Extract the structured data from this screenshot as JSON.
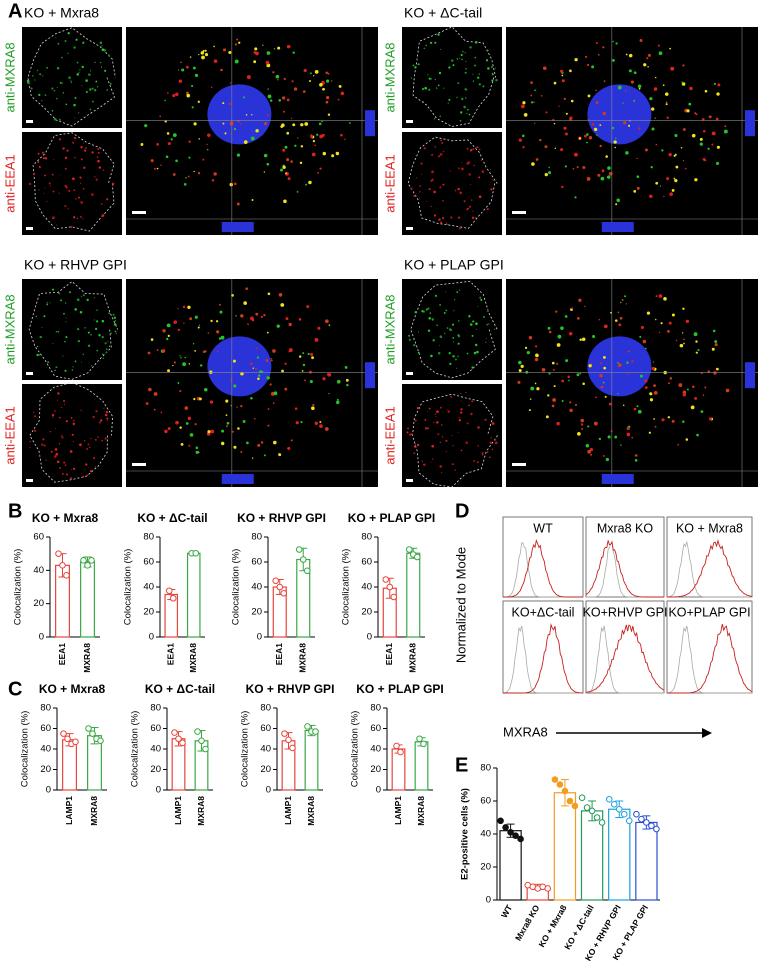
{
  "panel_labels": [
    "A",
    "B",
    "C",
    "D",
    "E"
  ],
  "microscopy": [
    {
      "title": "KO + Mxra8",
      "labels": [
        "anti-MXRA8",
        "anti-EEA1"
      ]
    },
    {
      "title": "KO + ΔC-tail",
      "labels": [
        "anti-MXRA8",
        "anti-EEA1"
      ]
    },
    {
      "title": "KO + RHVP GPI",
      "labels": [
        "anti-MXRA8",
        "anti-EEA1"
      ]
    },
    {
      "title": "KO + PLAP GPI",
      "labels": [
        "anti-MXRA8",
        "anti-EEA1"
      ]
    }
  ],
  "flow": {
    "ylabel": "Normalized to Mode",
    "xlabel": "MXRA8",
    "panels": [
      "WT",
      "Mxra8 KO",
      "KO + Mxra8",
      "KO+ΔC-tail",
      "KO+RHVP GPI",
      "KO+PLAP GPI"
    ]
  },
  "chart_data": [
    {
      "type": "bar",
      "title": "KO + Mxra8",
      "ylabel": "Colocalization (%)",
      "categories": [
        "EEA1",
        "MXRA8"
      ],
      "values": [
        43,
        45
      ],
      "errors": [
        7,
        3
      ],
      "points": [
        [
          50,
          43,
          37
        ],
        [
          46,
          43,
          46
        ]
      ],
      "colors": [
        "#e8453c",
        "#3aa845"
      ],
      "ylim": [
        0,
        60
      ],
      "yticks": [
        0,
        20,
        40,
        60
      ]
    },
    {
      "type": "bar",
      "title": "KO + ΔC-tail",
      "ylabel": "Colocalization (%)",
      "categories": [
        "EEA1",
        "MXRA8"
      ],
      "values": [
        34,
        67
      ],
      "errors": [
        4,
        0.5
      ],
      "points": [
        [
          37,
          31
        ],
        [
          67,
          67
        ]
      ],
      "colors": [
        "#e8453c",
        "#3aa845"
      ],
      "ylim": [
        0,
        80
      ],
      "yticks": [
        0,
        20,
        40,
        60,
        80
      ]
    },
    {
      "type": "bar",
      "title": "KO + RHVP GPI",
      "ylabel": "Colocalization (%)",
      "categories": [
        "EEA1",
        "MXRA8"
      ],
      "values": [
        40,
        62
      ],
      "errors": [
        6,
        9
      ],
      "points": [
        [
          45,
          40,
          35
        ],
        [
          70,
          62,
          53
        ]
      ],
      "colors": [
        "#e8453c",
        "#3aa845"
      ],
      "ylim": [
        0,
        80
      ],
      "yticks": [
        0,
        20,
        40,
        60,
        80
      ]
    },
    {
      "type": "bar",
      "title": "KO + PLAP GPI",
      "ylabel": "Colocalization (%)",
      "categories": [
        "EEA1",
        "MXRA8"
      ],
      "values": [
        39,
        67
      ],
      "errors": [
        8,
        4
      ],
      "points": [
        [
          46,
          40,
          32
        ],
        [
          70,
          66,
          64
        ]
      ],
      "colors": [
        "#e8453c",
        "#3aa845"
      ],
      "ylim": [
        0,
        80
      ],
      "yticks": [
        0,
        20,
        40,
        60,
        80
      ]
    },
    {
      "type": "bar",
      "title": "KO + Mxra8",
      "ylabel": "Colocalization (%)",
      "categories": [
        "LAMP1",
        "MXRA8"
      ],
      "values": [
        49,
        53
      ],
      "errors": [
        6,
        8
      ],
      "points": [
        [
          55,
          50,
          45,
          47
        ],
        [
          60,
          55,
          50,
          48
        ]
      ],
      "colors": [
        "#e8453c",
        "#3aa845"
      ],
      "ylim": [
        0,
        80
      ],
      "yticks": [
        0,
        20,
        40,
        60,
        80
      ]
    },
    {
      "type": "bar",
      "title": "KO + ΔC-tail",
      "ylabel": "Colocalization (%)",
      "categories": [
        "LAMP1",
        "MXRA8"
      ],
      "values": [
        50,
        48
      ],
      "errors": [
        7,
        10
      ],
      "points": [
        [
          56,
          50,
          46
        ],
        [
          57,
          48,
          40
        ]
      ],
      "colors": [
        "#e8453c",
        "#3aa845"
      ],
      "ylim": [
        0,
        80
      ],
      "yticks": [
        0,
        20,
        40,
        60,
        80
      ]
    },
    {
      "type": "bar",
      "title": "KO + RHVP GPI",
      "ylabel": "Colocalization (%)",
      "categories": [
        "LAMP1",
        "MXRA8"
      ],
      "values": [
        48,
        58
      ],
      "errors": [
        8,
        5
      ],
      "points": [
        [
          55,
          49,
          41
        ],
        [
          62,
          57,
          57
        ]
      ],
      "colors": [
        "#e8453c",
        "#3aa845"
      ],
      "ylim": [
        0,
        80
      ],
      "yticks": [
        0,
        20,
        40,
        60,
        80
      ]
    },
    {
      "type": "bar",
      "title": "KO + PLAP GPI",
      "ylabel": "Colocalization (%)",
      "categories": [
        "LAMP1",
        "MXRA8"
      ],
      "values": [
        40,
        47
      ],
      "errors": [
        4,
        4
      ],
      "points": [
        [
          43,
          37
        ],
        [
          50,
          45
        ]
      ],
      "colors": [
        "#e8453c",
        "#3aa845"
      ],
      "ylim": [
        0,
        80
      ],
      "yticks": [
        0,
        20,
        40,
        60,
        80
      ]
    },
    {
      "type": "bar",
      "ylabel": "E2-positive cells (%)",
      "categories": [
        "WT",
        "Mxra8 KO",
        "KO + Mxra8",
        "KO + ΔC-tail",
        "KO + RHVP GPI",
        "KO + PLAP GPI"
      ],
      "values": [
        42,
        8,
        65,
        54,
        55,
        47
      ],
      "errors": [
        4,
        1.5,
        8,
        6,
        5,
        4
      ],
      "points": [
        [
          48,
          44,
          41,
          39,
          37
        ],
        [
          9,
          8,
          7,
          8,
          7
        ],
        [
          73,
          70,
          66,
          60,
          57
        ],
        [
          62,
          56,
          54,
          50,
          47
        ],
        [
          61,
          58,
          55,
          52,
          48
        ],
        [
          52,
          49,
          47,
          45,
          43
        ]
      ],
      "colors": [
        "#111111",
        "#e8453c",
        "#f39c1f",
        "#1f9a5a",
        "#1ea0e0",
        "#2a4fd0"
      ],
      "ylim": [
        0,
        80
      ],
      "yticks": [
        0,
        20,
        40,
        60,
        80
      ]
    }
  ]
}
